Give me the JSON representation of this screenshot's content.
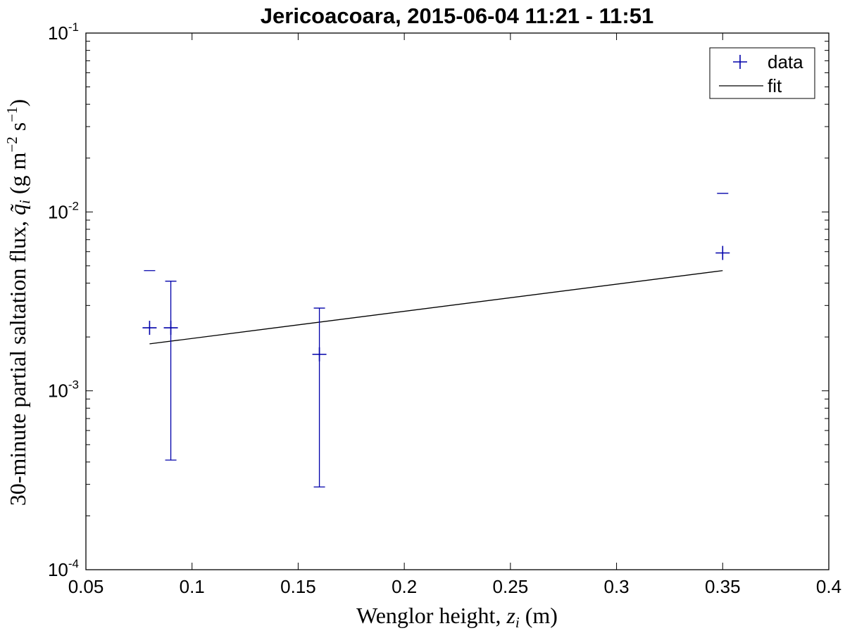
{
  "chart_data": {
    "type": "scatter",
    "title": "Jericoacoara, 2015-06-04 11:21 - 11:51",
    "xlabel": "Wenglor height, z_i (m)",
    "xlabel_parts": {
      "main": "Wenglor height, ",
      "var": "z",
      "sub": "i",
      "unit": " (m)"
    },
    "ylabel": "30-minute partial saltation flux, q̃_i (g m^-2 s^-1)",
    "ylabel_parts": {
      "main": "30-minute partial saltation flux, ",
      "var": "q̃",
      "sub": "i",
      "unit_a": " (g m",
      "exp_a": "−2",
      "unit_b": " s",
      "exp_b": "−1",
      "unit_c": ")"
    },
    "xlim": [
      0.05,
      0.4
    ],
    "ylim": [
      0.0001,
      0.1
    ],
    "yscale": "log",
    "grid": false,
    "legend_position": "top-right",
    "x_ticks": [
      0.05,
      0.1,
      0.15,
      0.2,
      0.25,
      0.3,
      0.35,
      0.4
    ],
    "x_tick_labels": [
      "0.05",
      "0.1",
      "0.15",
      "0.2",
      "0.25",
      "0.3",
      "0.35",
      "0.4"
    ],
    "y_ticks": [
      0.0001,
      0.001,
      0.01,
      0.1
    ],
    "y_tick_labels": [
      {
        "base": "10",
        "exp": "-4"
      },
      {
        "base": "10",
        "exp": "-3"
      },
      {
        "base": "10",
        "exp": "-2"
      },
      {
        "base": "10",
        "exp": "-1"
      }
    ],
    "series": [
      {
        "name": "data",
        "marker": "plus",
        "color": "#0000aa",
        "points": [
          {
            "x": 0.08,
            "y": 0.00225,
            "err_upper": 0.0047,
            "err_lower": null
          },
          {
            "x": 0.09,
            "y": 0.00225,
            "err_upper": 0.0041,
            "err_lower": 0.00041
          },
          {
            "x": 0.16,
            "y": 0.0016,
            "err_upper": 0.0029,
            "err_lower": 0.00029
          },
          {
            "x": 0.35,
            "y": 0.0059,
            "err_upper": 0.0127,
            "err_lower": null
          }
        ]
      },
      {
        "name": "fit",
        "marker": "line",
        "color": "#000000",
        "points": [
          {
            "x": 0.08,
            "y": 0.00183
          },
          {
            "x": 0.35,
            "y": 0.0047
          }
        ]
      }
    ]
  }
}
